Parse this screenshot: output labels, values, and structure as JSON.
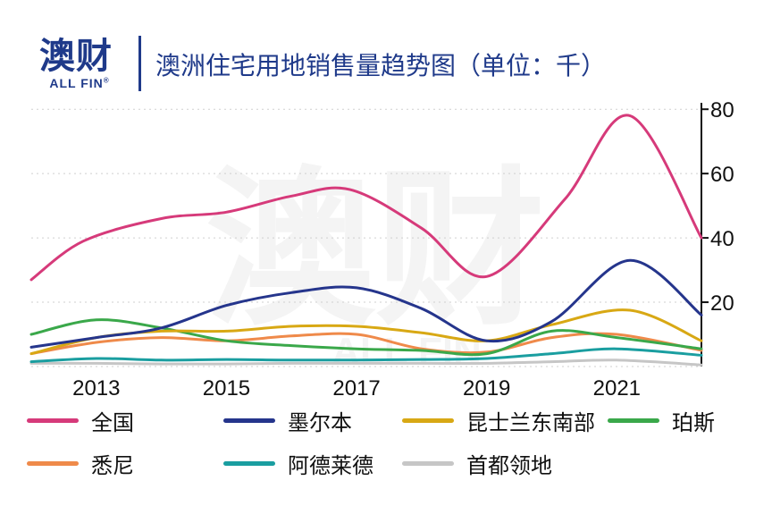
{
  "header": {
    "logo_text": "澳财",
    "logo_sub": "ALL FIN",
    "logo_reg": "®",
    "title": "澳洲住宅用地销售量趋势图（单位：千）"
  },
  "watermark": {
    "text": "澳财",
    "sub": "ALL FIN"
  },
  "colors": {
    "accent": "#1f3a8a"
  },
  "chart_data": {
    "type": "line",
    "x_ticks": [
      "2013",
      "2015",
      "2017",
      "2019",
      "2021"
    ],
    "y_ticks": [
      "20",
      "40",
      "60",
      "80"
    ],
    "xlim": [
      2012,
      2022.3
    ],
    "ylim": [
      0,
      82
    ],
    "grid": "horizontal dotted",
    "legend_position": "bottom",
    "series": [
      {
        "name": "全国",
        "color": "#d63a7a",
        "x": [
          2012,
          2012.8,
          2014,
          2015,
          2016,
          2016.9,
          2018,
          2019,
          2020.2,
          2021.2,
          2022.3
        ],
        "y": [
          27,
          39,
          46,
          48,
          53,
          55,
          43,
          28,
          52,
          78,
          40
        ]
      },
      {
        "name": "墨尔本",
        "color": "#25358c",
        "x": [
          2012,
          2013,
          2014,
          2015,
          2016,
          2017,
          2018,
          2019,
          2020,
          2021.2,
          2022.3
        ],
        "y": [
          6,
          9,
          12,
          19,
          23,
          24.5,
          18,
          8,
          14,
          33,
          16
        ]
      },
      {
        "name": "昆士兰东南部",
        "color": "#d8a814",
        "x": [
          2012,
          2013,
          2014,
          2015,
          2016,
          2017,
          2018,
          2019,
          2020,
          2021.2,
          2022.3
        ],
        "y": [
          4,
          9,
          11,
          11,
          12.5,
          12.5,
          10.5,
          8,
          13,
          17.5,
          8
        ]
      },
      {
        "name": "珀斯",
        "color": "#3aa84a",
        "x": [
          2012,
          2013,
          2014,
          2015,
          2016,
          2017,
          2018,
          2019,
          2020,
          2021,
          2022.3
        ],
        "y": [
          10,
          14.5,
          12,
          8,
          6.5,
          5.5,
          5,
          4,
          11,
          9,
          5.5
        ]
      },
      {
        "name": "悉尼",
        "color": "#ef8a4a",
        "x": [
          2012,
          2013,
          2014,
          2015,
          2016,
          2017,
          2018,
          2019,
          2020,
          2021,
          2022.3
        ],
        "y": [
          4,
          7.5,
          9,
          8,
          9.5,
          10,
          5.5,
          4.5,
          9,
          10,
          5
        ]
      },
      {
        "name": "阿德莱德",
        "color": "#1a9ea0",
        "x": [
          2012,
          2013,
          2014,
          2015,
          2016,
          2017,
          2018,
          2019,
          2020,
          2021,
          2022.3
        ],
        "y": [
          1.5,
          2.5,
          2,
          2.2,
          2,
          2,
          2.2,
          2.5,
          4,
          5.5,
          3.5
        ]
      },
      {
        "name": "首都领地",
        "color": "#c6c6c6",
        "x": [
          2012,
          2013,
          2014,
          2015,
          2016,
          2017,
          2018,
          2019,
          2020,
          2021,
          2022.3
        ],
        "y": [
          1,
          1,
          0.8,
          0.8,
          1,
          1,
          1,
          1,
          1.5,
          2,
          0.5
        ]
      }
    ]
  }
}
